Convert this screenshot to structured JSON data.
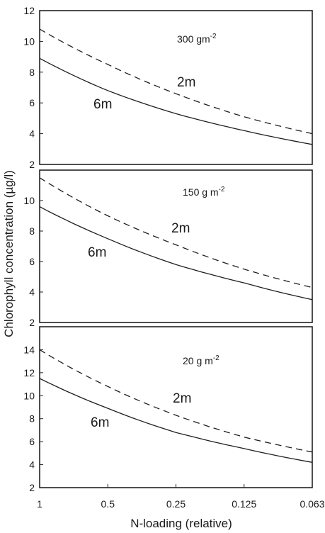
{
  "chart_data": {
    "type": "line",
    "ylabel": "Chlorophyll concentration (µg/l)",
    "xlabel": "N-loading (relative)",
    "x": [
      "1",
      "0.5",
      "0.25",
      "0.125",
      "0.063"
    ],
    "panels": [
      {
        "label": "300 gm",
        "label_exp": "-2",
        "ylim": [
          2,
          12
        ],
        "yticks": [
          2,
          4,
          6,
          8,
          10,
          12
        ],
        "series": [
          {
            "name": "2m",
            "style": "dashed",
            "values": [
              10.8,
              8.5,
              6.6,
              5.1,
              4.0
            ]
          },
          {
            "name": "6m",
            "style": "solid",
            "values": [
              8.9,
              6.8,
              5.3,
              4.2,
              3.3
            ]
          }
        ]
      },
      {
        "label": "150 g  m",
        "label_exp": "-2",
        "ylim": [
          2,
          12
        ],
        "yticks": [
          2,
          4,
          6,
          8,
          10
        ],
        "series": [
          {
            "name": "2m",
            "style": "dashed",
            "values": [
              11.5,
              9.0,
              7.1,
              5.5,
              4.3
            ]
          },
          {
            "name": "6m",
            "style": "solid",
            "values": [
              9.6,
              7.5,
              5.8,
              4.6,
              3.5
            ]
          }
        ]
      },
      {
        "label": "20 g  m",
        "label_exp": "-2",
        "ylim": [
          2,
          16
        ],
        "yticks": [
          2,
          4,
          6,
          8,
          10,
          12,
          14
        ],
        "series": [
          {
            "name": "2m",
            "style": "dashed",
            "values": [
              14.0,
              10.8,
              8.3,
              6.4,
              5.1
            ]
          },
          {
            "name": "6m",
            "style": "solid",
            "values": [
              11.5,
              8.9,
              6.8,
              5.4,
              4.2
            ]
          }
        ]
      }
    ]
  }
}
